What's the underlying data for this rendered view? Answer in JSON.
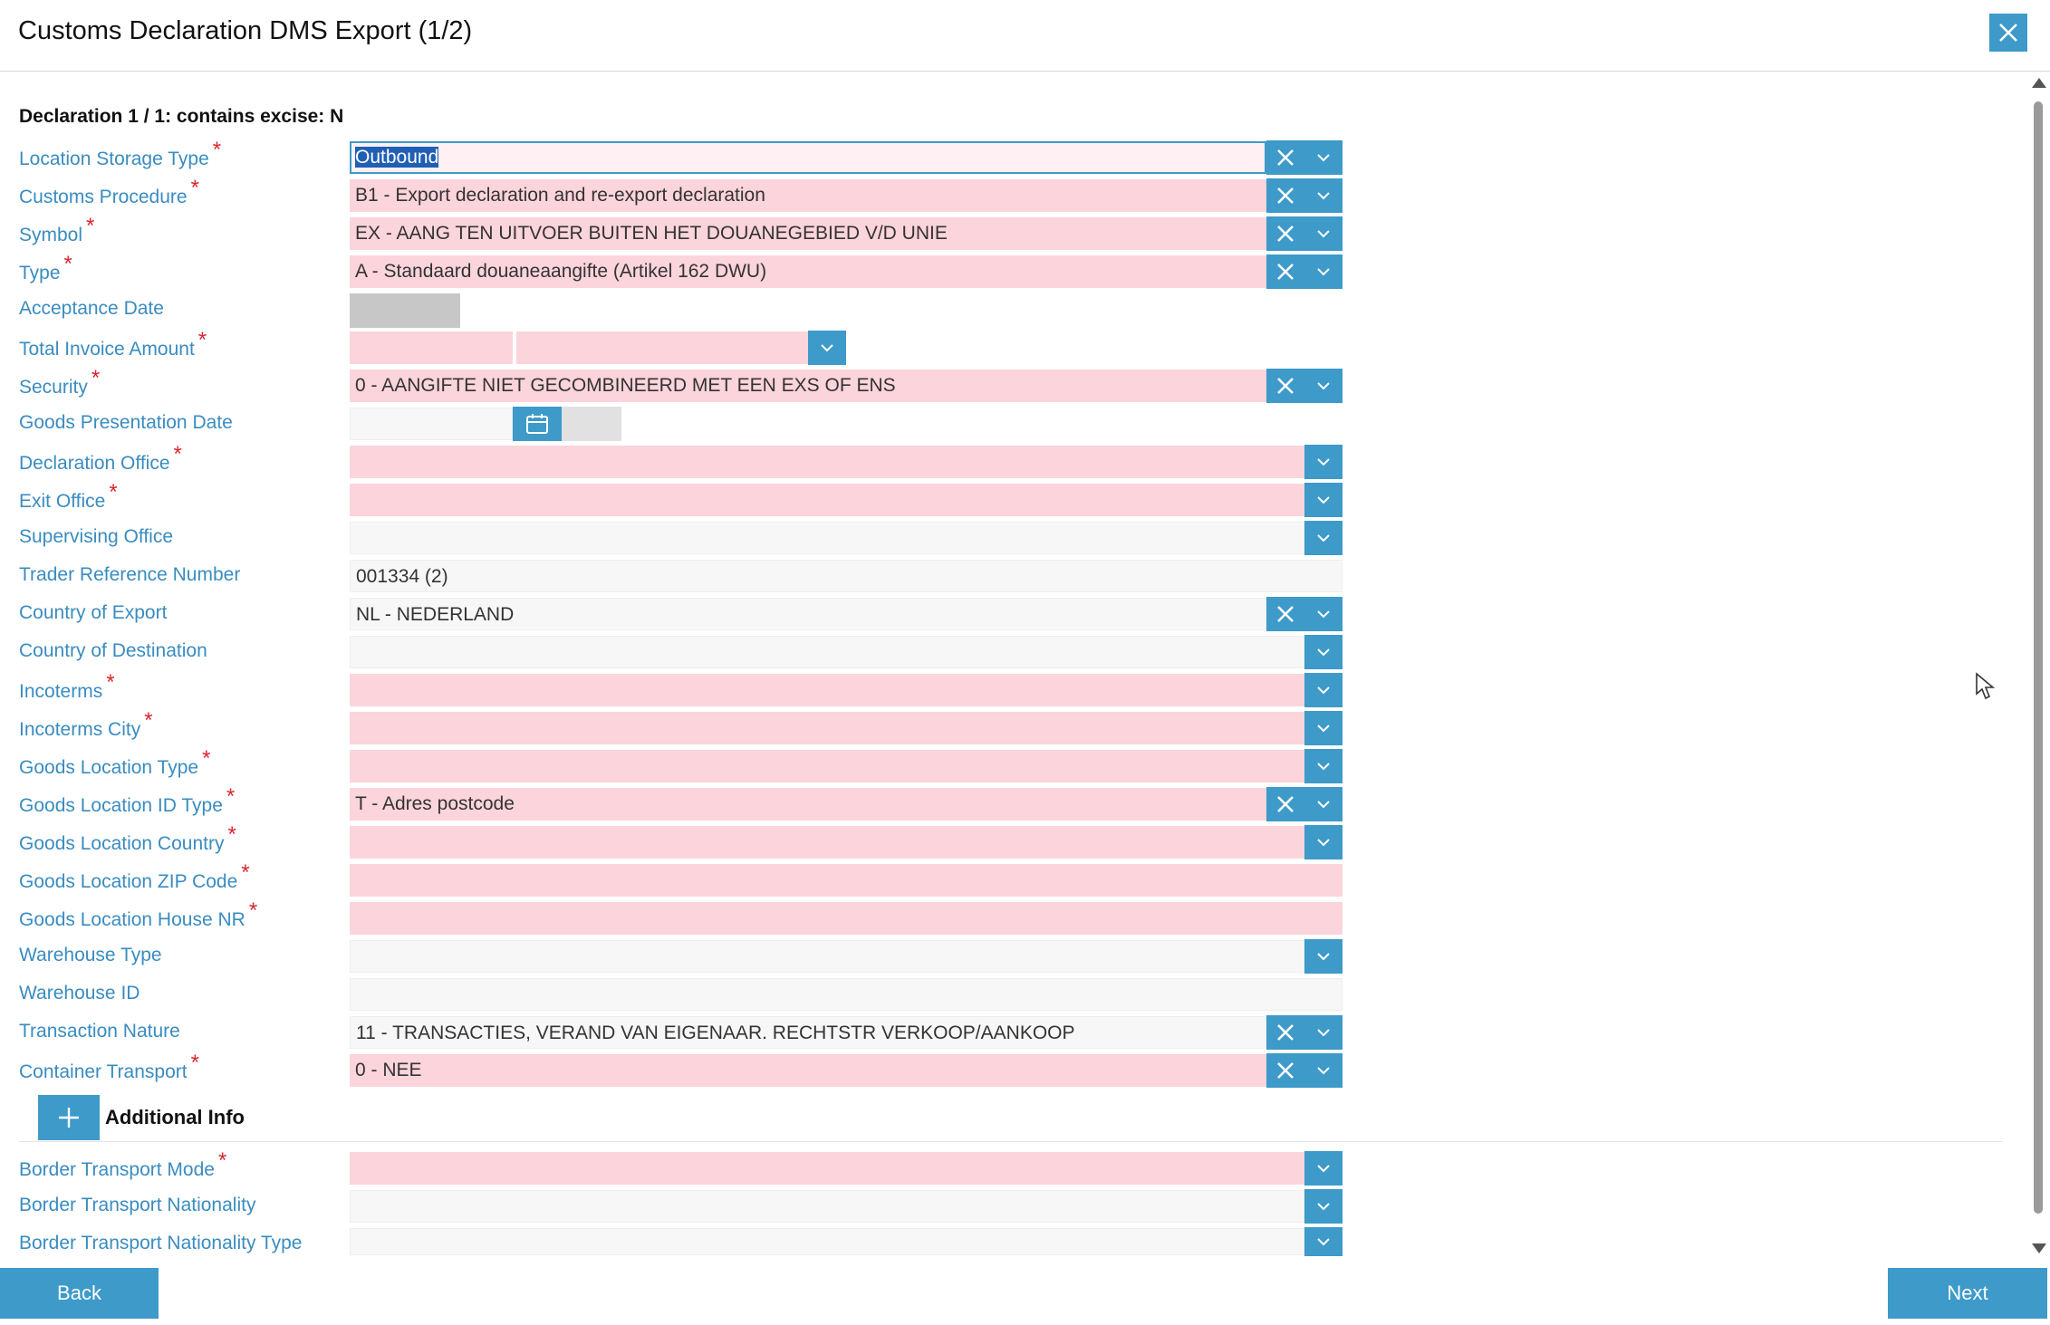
{
  "window": {
    "title": "Customs Declaration DMS Export (1/2)"
  },
  "declaration_header": "Declaration 1 / 1: contains excise: N",
  "fields": [
    {
      "label": "Location Storage Type",
      "required": true,
      "value": "Outbound"
    },
    {
      "label": "Customs Procedure",
      "required": true,
      "value": "B1 - Export declaration and re-export declaration"
    },
    {
      "label": "Symbol",
      "required": true,
      "value": "EX - AANG TEN UITVOER BUITEN HET DOUANEGEBIED V/D UNIE"
    },
    {
      "label": "Type",
      "required": true,
      "value": "A - Standaard douaneaangifte (Artikel 162 DWU)"
    },
    {
      "label": "Acceptance Date",
      "required": false,
      "value": ""
    },
    {
      "label": "Total Invoice Amount",
      "required": true,
      "value": ""
    },
    {
      "label": "Security",
      "required": true,
      "value": "0 - AANGIFTE NIET GECOMBINEERD MET EEN EXS OF ENS"
    },
    {
      "label": "Goods Presentation Date",
      "required": false,
      "value": ""
    },
    {
      "label": "Declaration Office",
      "required": true,
      "value": ""
    },
    {
      "label": "Exit Office",
      "required": true,
      "value": ""
    },
    {
      "label": "Supervising Office",
      "required": false,
      "value": ""
    },
    {
      "label": "Trader Reference Number",
      "required": false,
      "value": "001334 (2)"
    },
    {
      "label": "Country of Export",
      "required": false,
      "value": "NL - NEDERLAND"
    },
    {
      "label": "Country of Destination",
      "required": false,
      "value": ""
    },
    {
      "label": "Incoterms",
      "required": true,
      "value": ""
    },
    {
      "label": "Incoterms City",
      "required": true,
      "value": ""
    },
    {
      "label": "Goods Location Type",
      "required": true,
      "value": ""
    },
    {
      "label": "Goods Location ID Type",
      "required": true,
      "value": "T - Adres postcode"
    },
    {
      "label": "Goods Location Country",
      "required": true,
      "value": ""
    },
    {
      "label": "Goods Location ZIP Code",
      "required": true,
      "value": ""
    },
    {
      "label": "Goods Location House NR",
      "required": true,
      "value": ""
    },
    {
      "label": "Warehouse Type",
      "required": false,
      "value": ""
    },
    {
      "label": "Warehouse ID",
      "required": false,
      "value": ""
    },
    {
      "label": "Transaction Nature",
      "required": false,
      "value": "11 - TRANSACTIES, VERAND VAN EIGENAAR. RECHTSTR VERKOOP/AANKOOP"
    },
    {
      "label": "Container Transport",
      "required": true,
      "value": "0 - NEE"
    }
  ],
  "additional_info": {
    "label": "Additional Info"
  },
  "extra_fields": [
    {
      "label": "Border Transport Mode",
      "required": true,
      "value": ""
    },
    {
      "label": "Border Transport Nationality",
      "required": false,
      "value": ""
    },
    {
      "label": "Border Transport Nationality Type",
      "required": false,
      "value": ""
    }
  ],
  "required_marker": "*",
  "footer": {
    "back_label": "Back",
    "next_label": "Next"
  },
  "icons": {
    "close": "close-icon",
    "clear": "clear-x-icon",
    "dropdown": "chevron-down-icon",
    "calendar": "calendar-icon",
    "plus": "plus-icon"
  },
  "colors": {
    "accent": "#3d9ac9",
    "required_bg": "#fcd4dc",
    "label": "#3a8cc0",
    "required_marker": "#d9262f"
  }
}
